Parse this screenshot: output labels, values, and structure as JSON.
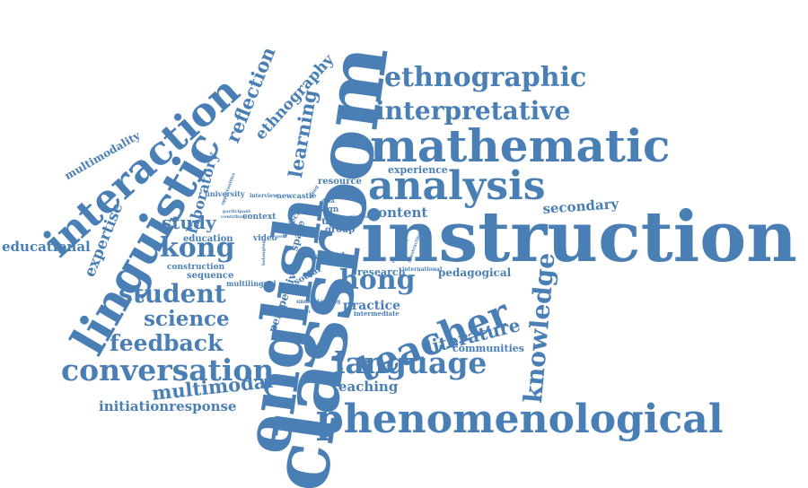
{
  "words": {
    "instruction": "instruction",
    "classroom": "classroom",
    "english": "english",
    "mathematic": "mathematic",
    "phenomenological": "phenomenological",
    "linguistic": "linguistic",
    "interaction": "interaction",
    "analysis": "analysis",
    "teacher": "teacher",
    "conversation": "conversation",
    "language": "language",
    "ethnographic": "ethnographic",
    "interpretative": "interpretative",
    "student": "student",
    "knowledge": "knowledge",
    "hong": "hong",
    "kong": "kong",
    "feedback": "feedback",
    "science": "science",
    "reflection": "reflection",
    "learning": "learning",
    "ethnography": "ethnography",
    "educational": "educational",
    "expertise": "expertise",
    "secondary": "secondary",
    "literature": "literature",
    "multimodal": "multimodal",
    "initiationresponse": "initiationresponse",
    "laboratory": "laboratory",
    "multimodality": "multimodality",
    "study": "study",
    "content": "content",
    "teaching": "teaching",
    "perspective": "perspective",
    "practice": "practice",
    "research": "research",
    "pedagogical": "pedagogical",
    "communities": "communities",
    "experience": "experience",
    "resource": "resource",
    "uptake": "uptake",
    "group": "group",
    "school": "school",
    "sequence": "sequence",
    "education": "education",
    "construction": "construction",
    "video": "video",
    "context": "context",
    "university": "university",
    "newcastle": "newcastle",
    "design": "design",
    "social": "social",
    "space": "space",
    "subject": "subject",
    "multilingual": "multilingual",
    "intermediate": "intermediate",
    "international": "international",
    "interview": "interview",
    "participant": "participant",
    "understanding": "understanding",
    "opportunities": "opportunities",
    "talk": "talk",
    "data": "data",
    "paper": "paper",
    "year": "year",
    "belonging": "belonging",
    "connecting": "connecting",
    "constructing": "constructing",
    "environment": "environment",
    "contribute": "contribute",
    "doing": "doing",
    "classes": "classes"
  },
  "colors": {
    "word": "#4a7fb5"
  }
}
